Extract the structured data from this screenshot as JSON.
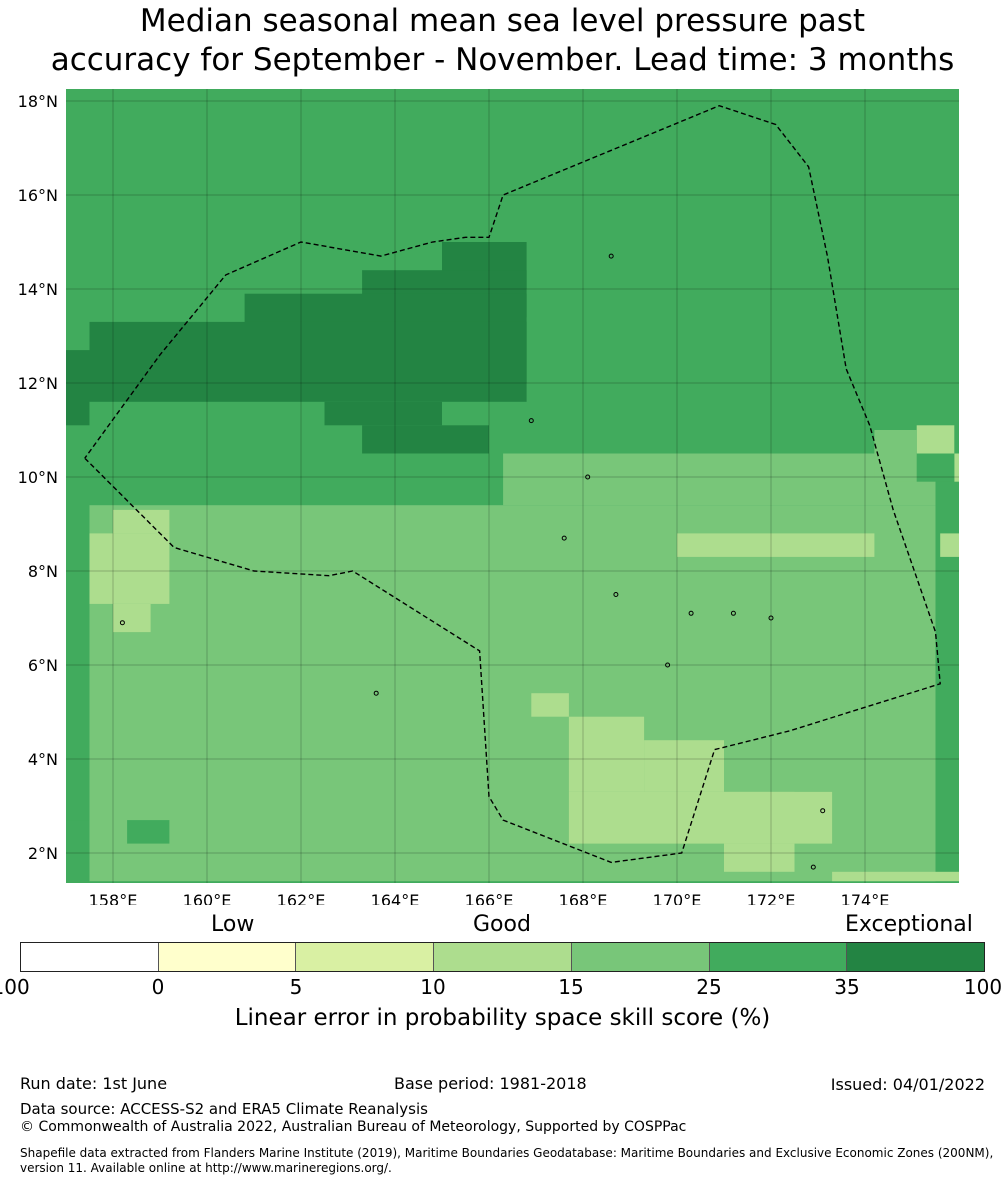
{
  "title": {
    "line1": "Median seasonal mean sea level pressure past",
    "line2": "accuracy for September - November. Lead time: 3 months"
  },
  "map": {
    "lat_labels": [
      "18°N",
      "16°N",
      "14°N",
      "12°N",
      "10°N",
      "8°N",
      "6°N",
      "4°N",
      "2°N"
    ],
    "lon_labels": [
      "158°E",
      "160°E",
      "162°E",
      "164°E",
      "166°E",
      "168°E",
      "170°E",
      "172°E",
      "174°E"
    ],
    "lat_values": [
      18,
      16,
      14,
      12,
      10,
      8,
      6,
      4,
      2
    ],
    "lon_values": [
      158,
      160,
      162,
      164,
      166,
      168,
      170,
      172,
      174
    ],
    "lon_range": [
      157,
      176
    ],
    "lat_range": [
      1.4,
      18.3
    ],
    "default_color": "#41ab5d",
    "palette": {
      "0-5": "#ffffcc",
      "5-10": "#d9f0a3",
      "10-15": "#addd8e",
      "15-25": "#78c679",
      "25-35": "#41ab5d",
      "35-100": "#238443"
    },
    "cells": [
      {
        "lon": [
          157.5,
          175.5
        ],
        "lat": [
          1.4,
          9.4
        ],
        "cls": "15-25"
      },
      {
        "lon": [
          166.3,
          175.5
        ],
        "lat": [
          9.4,
          10.5
        ],
        "cls": "15-25"
      },
      {
        "lon": [
          157.5,
          159.2
        ],
        "lat": [
          7.3,
          8.8
        ],
        "cls": "10-15"
      },
      {
        "lon": [
          158.0,
          159.2
        ],
        "lat": [
          8.8,
          9.3
        ],
        "cls": "10-15"
      },
      {
        "lon": [
          158.0,
          158.8
        ],
        "lat": [
          6.7,
          7.3
        ],
        "cls": "10-15"
      },
      {
        "lon": [
          170.0,
          174.2
        ],
        "lat": [
          8.3,
          8.8
        ],
        "cls": "10-15"
      },
      {
        "lon": [
          175.6,
          176.0
        ],
        "lat": [
          8.3,
          8.8
        ],
        "cls": "10-15"
      },
      {
        "lon": [
          166.9,
          167.7
        ],
        "lat": [
          4.9,
          5.4
        ],
        "cls": "10-15"
      },
      {
        "lon": [
          167.7,
          169.3
        ],
        "lat": [
          3.3,
          4.9
        ],
        "cls": "10-15"
      },
      {
        "lon": [
          169.3,
          171.0
        ],
        "lat": [
          3.3,
          4.4
        ],
        "cls": "10-15"
      },
      {
        "lon": [
          167.7,
          172.5
        ],
        "lat": [
          2.2,
          3.3
        ],
        "cls": "10-15"
      },
      {
        "lon": [
          171.0,
          173.3
        ],
        "lat": [
          2.2,
          3.3
        ],
        "cls": "10-15"
      },
      {
        "lon": [
          171.0,
          172.5
        ],
        "lat": [
          1.6,
          2.2
        ],
        "cls": "10-15"
      },
      {
        "lon": [
          173.3,
          176.0
        ],
        "lat": [
          1.4,
          1.6
        ],
        "cls": "10-15"
      },
      {
        "lon": [
          175.1,
          175.9
        ],
        "lat": [
          10.5,
          11.1
        ],
        "cls": "10-15"
      },
      {
        "lon": [
          175.9,
          176.0
        ],
        "lat": [
          9.9,
          10.5
        ],
        "cls": "10-15"
      },
      {
        "lon": [
          174.2,
          175.1
        ],
        "lat": [
          9.9,
          11.0
        ],
        "cls": "15-25"
      },
      {
        "lon": [
          157.0,
          157.5
        ],
        "lat": [
          1.4,
          2.7
        ],
        "cls": "25-35"
      },
      {
        "lon": [
          158.3,
          159.2
        ],
        "lat": [
          2.2,
          2.7
        ],
        "cls": "25-35"
      },
      {
        "lon": [
          175.1,
          175.9
        ],
        "lat": [
          9.9,
          10.5
        ],
        "cls": "25-35"
      },
      {
        "lon": [
          165.0,
          166.8
        ],
        "lat": [
          14.0,
          15.0
        ],
        "cls": "35-100"
      },
      {
        "lon": [
          163.3,
          166.8
        ],
        "lat": [
          13.4,
          14.4
        ],
        "cls": "35-100"
      },
      {
        "lon": [
          160.8,
          166.8
        ],
        "lat": [
          12.0,
          13.9
        ],
        "cls": "35-100"
      },
      {
        "lon": [
          157.5,
          166.8
        ],
        "lat": [
          11.6,
          13.3
        ],
        "cls": "35-100"
      },
      {
        "lon": [
          157.0,
          157.5
        ],
        "lat": [
          11.1,
          12.7
        ],
        "cls": "35-100"
      },
      {
        "lon": [
          162.5,
          165.0
        ],
        "lat": [
          11.1,
          11.6
        ],
        "cls": "35-100"
      },
      {
        "lon": [
          163.3,
          166.0
        ],
        "lat": [
          10.5,
          11.1
        ],
        "cls": "35-100"
      }
    ],
    "boundary": [
      [
        157.4,
        10.4
      ],
      [
        158.2,
        9.6
      ],
      [
        159.3,
        8.5
      ],
      [
        161.0,
        8.0
      ],
      [
        162.6,
        7.9
      ],
      [
        163.1,
        8.0
      ],
      [
        165.8,
        6.3
      ],
      [
        166.0,
        3.2
      ],
      [
        166.3,
        2.7
      ],
      [
        168.6,
        1.8
      ],
      [
        170.1,
        2.0
      ],
      [
        170.8,
        4.2
      ],
      [
        172.4,
        4.6
      ],
      [
        175.6,
        5.6
      ],
      [
        175.5,
        6.7
      ],
      [
        174.6,
        9.3
      ],
      [
        174.1,
        11.1
      ],
      [
        173.6,
        12.3
      ],
      [
        173.2,
        14.7
      ],
      [
        172.8,
        16.6
      ],
      [
        172.1,
        17.5
      ],
      [
        170.9,
        17.9
      ],
      [
        166.3,
        16.0
      ],
      [
        166.0,
        15.1
      ],
      [
        165.5,
        15.1
      ],
      [
        164.8,
        15.0
      ],
      [
        163.7,
        14.7
      ],
      [
        162.0,
        15.0
      ],
      [
        160.4,
        14.3
      ],
      [
        159.0,
        12.6
      ],
      [
        157.4,
        10.4
      ]
    ],
    "islands": [
      [
        158.2,
        6.9
      ],
      [
        166.9,
        11.2
      ],
      [
        168.6,
        14.7
      ],
      [
        170.3,
        7.1
      ],
      [
        169.8,
        6.0
      ],
      [
        172.0,
        7.0
      ],
      [
        171.2,
        7.1
      ],
      [
        173.1,
        2.9
      ],
      [
        172.9,
        1.7
      ],
      [
        163.6,
        5.4
      ],
      [
        168.7,
        7.5
      ],
      [
        167.6,
        8.7
      ],
      [
        168.1,
        10.0
      ]
    ]
  },
  "colorbar": {
    "category_labels": [
      "Low",
      "Good",
      "Exceptional"
    ],
    "ticks": [
      "-100",
      "0",
      "5",
      "10",
      "15",
      "25",
      "35",
      "100"
    ],
    "colors": [
      "#ffffff",
      "#ffffcc",
      "#d9f0a3",
      "#addd8e",
      "#78c679",
      "#41ab5d",
      "#238443"
    ],
    "axis_label": "Linear error in probability space skill score (%)"
  },
  "footer": {
    "run_date": "Run date: 1st June",
    "base_period": "Base period: 1981-2018",
    "issued": "Issued: 04/01/2022",
    "data_source": "Data source: ACCESS-S2 and ERA5 Climate Reanalysis",
    "copyright": "© Commonwealth of Australia 2022, Australian Bureau of Meteorology, Supported by COSPPac",
    "shapefile": "Shapefile data extracted from Flanders Marine Institute (2019), Maritime Boundaries Geodatabase: Maritime Boundaries and Exclusive Economic Zones (200NM), version 11. Available online at http://www.marineregions.org/."
  }
}
